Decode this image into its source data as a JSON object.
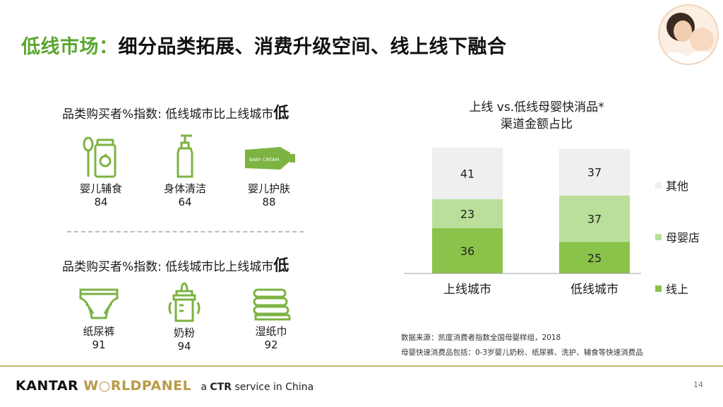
{
  "title": {
    "green": "低线市场：",
    "dark": "细分品类拓展、消费升级空间、线上线下融合"
  },
  "section1": {
    "heading": "品类购买者%指数: 低线城市比上线城市",
    "heading_emph": "低",
    "items": [
      {
        "label": "婴儿辅食",
        "value": "84",
        "icon": "baby-food-jar-icon"
      },
      {
        "label": "身体清洁",
        "value": "64",
        "icon": "pump-bottle-icon"
      },
      {
        "label": "婴儿护肤",
        "value": "88",
        "icon": "cream-tube-icon",
        "icon_text": "BABY CREAM"
      }
    ]
  },
  "section2": {
    "heading": "品类购买者%指数: 低线城市比上线城市",
    "heading_emph": "低",
    "items": [
      {
        "label": "纸尿裤",
        "value": "91",
        "icon": "diaper-icon"
      },
      {
        "label": "奶粉",
        "value": "94",
        "icon": "baby-bottle-icon"
      },
      {
        "label": "湿纸巾",
        "value": "92",
        "icon": "wet-wipes-icon"
      }
    ]
  },
  "chart_title_line1": "上线 vs.低线母婴快消品*",
  "chart_title_line2": "渠道金额占比",
  "chart_data": {
    "type": "bar",
    "stacked": true,
    "title": "上线 vs.低线母婴快消品* 渠道金额占比",
    "categories": [
      "上线城市",
      "低线城市"
    ],
    "series": [
      {
        "name": "线上",
        "values": [
          36,
          25
        ],
        "color": "#8bc34a"
      },
      {
        "name": "母婴店",
        "values": [
          23,
          37
        ],
        "color": "#b9df9b"
      },
      {
        "name": "其他",
        "values": [
          41,
          37
        ],
        "color": "#efefef"
      }
    ],
    "ylim": [
      0,
      100
    ],
    "legend": "right"
  },
  "legend": [
    {
      "label": "其他",
      "color": "#efefef"
    },
    {
      "label": "母婴店",
      "color": "#b9df9b"
    },
    {
      "label": "线上",
      "color": "#8bc34a"
    }
  ],
  "source_line1": "数据来源：凯度消费者指数全国母婴样组，2018",
  "source_line2": "母婴快速消费品包括：0-3岁婴儿奶粉、纸尿裤、洗护、辅食等快速消费品",
  "brand": {
    "kantar": "KANTAR",
    "worldpanel": "W○RLDPANEL",
    "ctr_prefix": "a",
    "ctr": "CTR",
    "ctr_suffix": "service in China"
  },
  "page_number": "14",
  "colors": {
    "accent_green": "#5aa62f",
    "icon_green": "#7cb342",
    "brand_gold": "#b89b47"
  }
}
